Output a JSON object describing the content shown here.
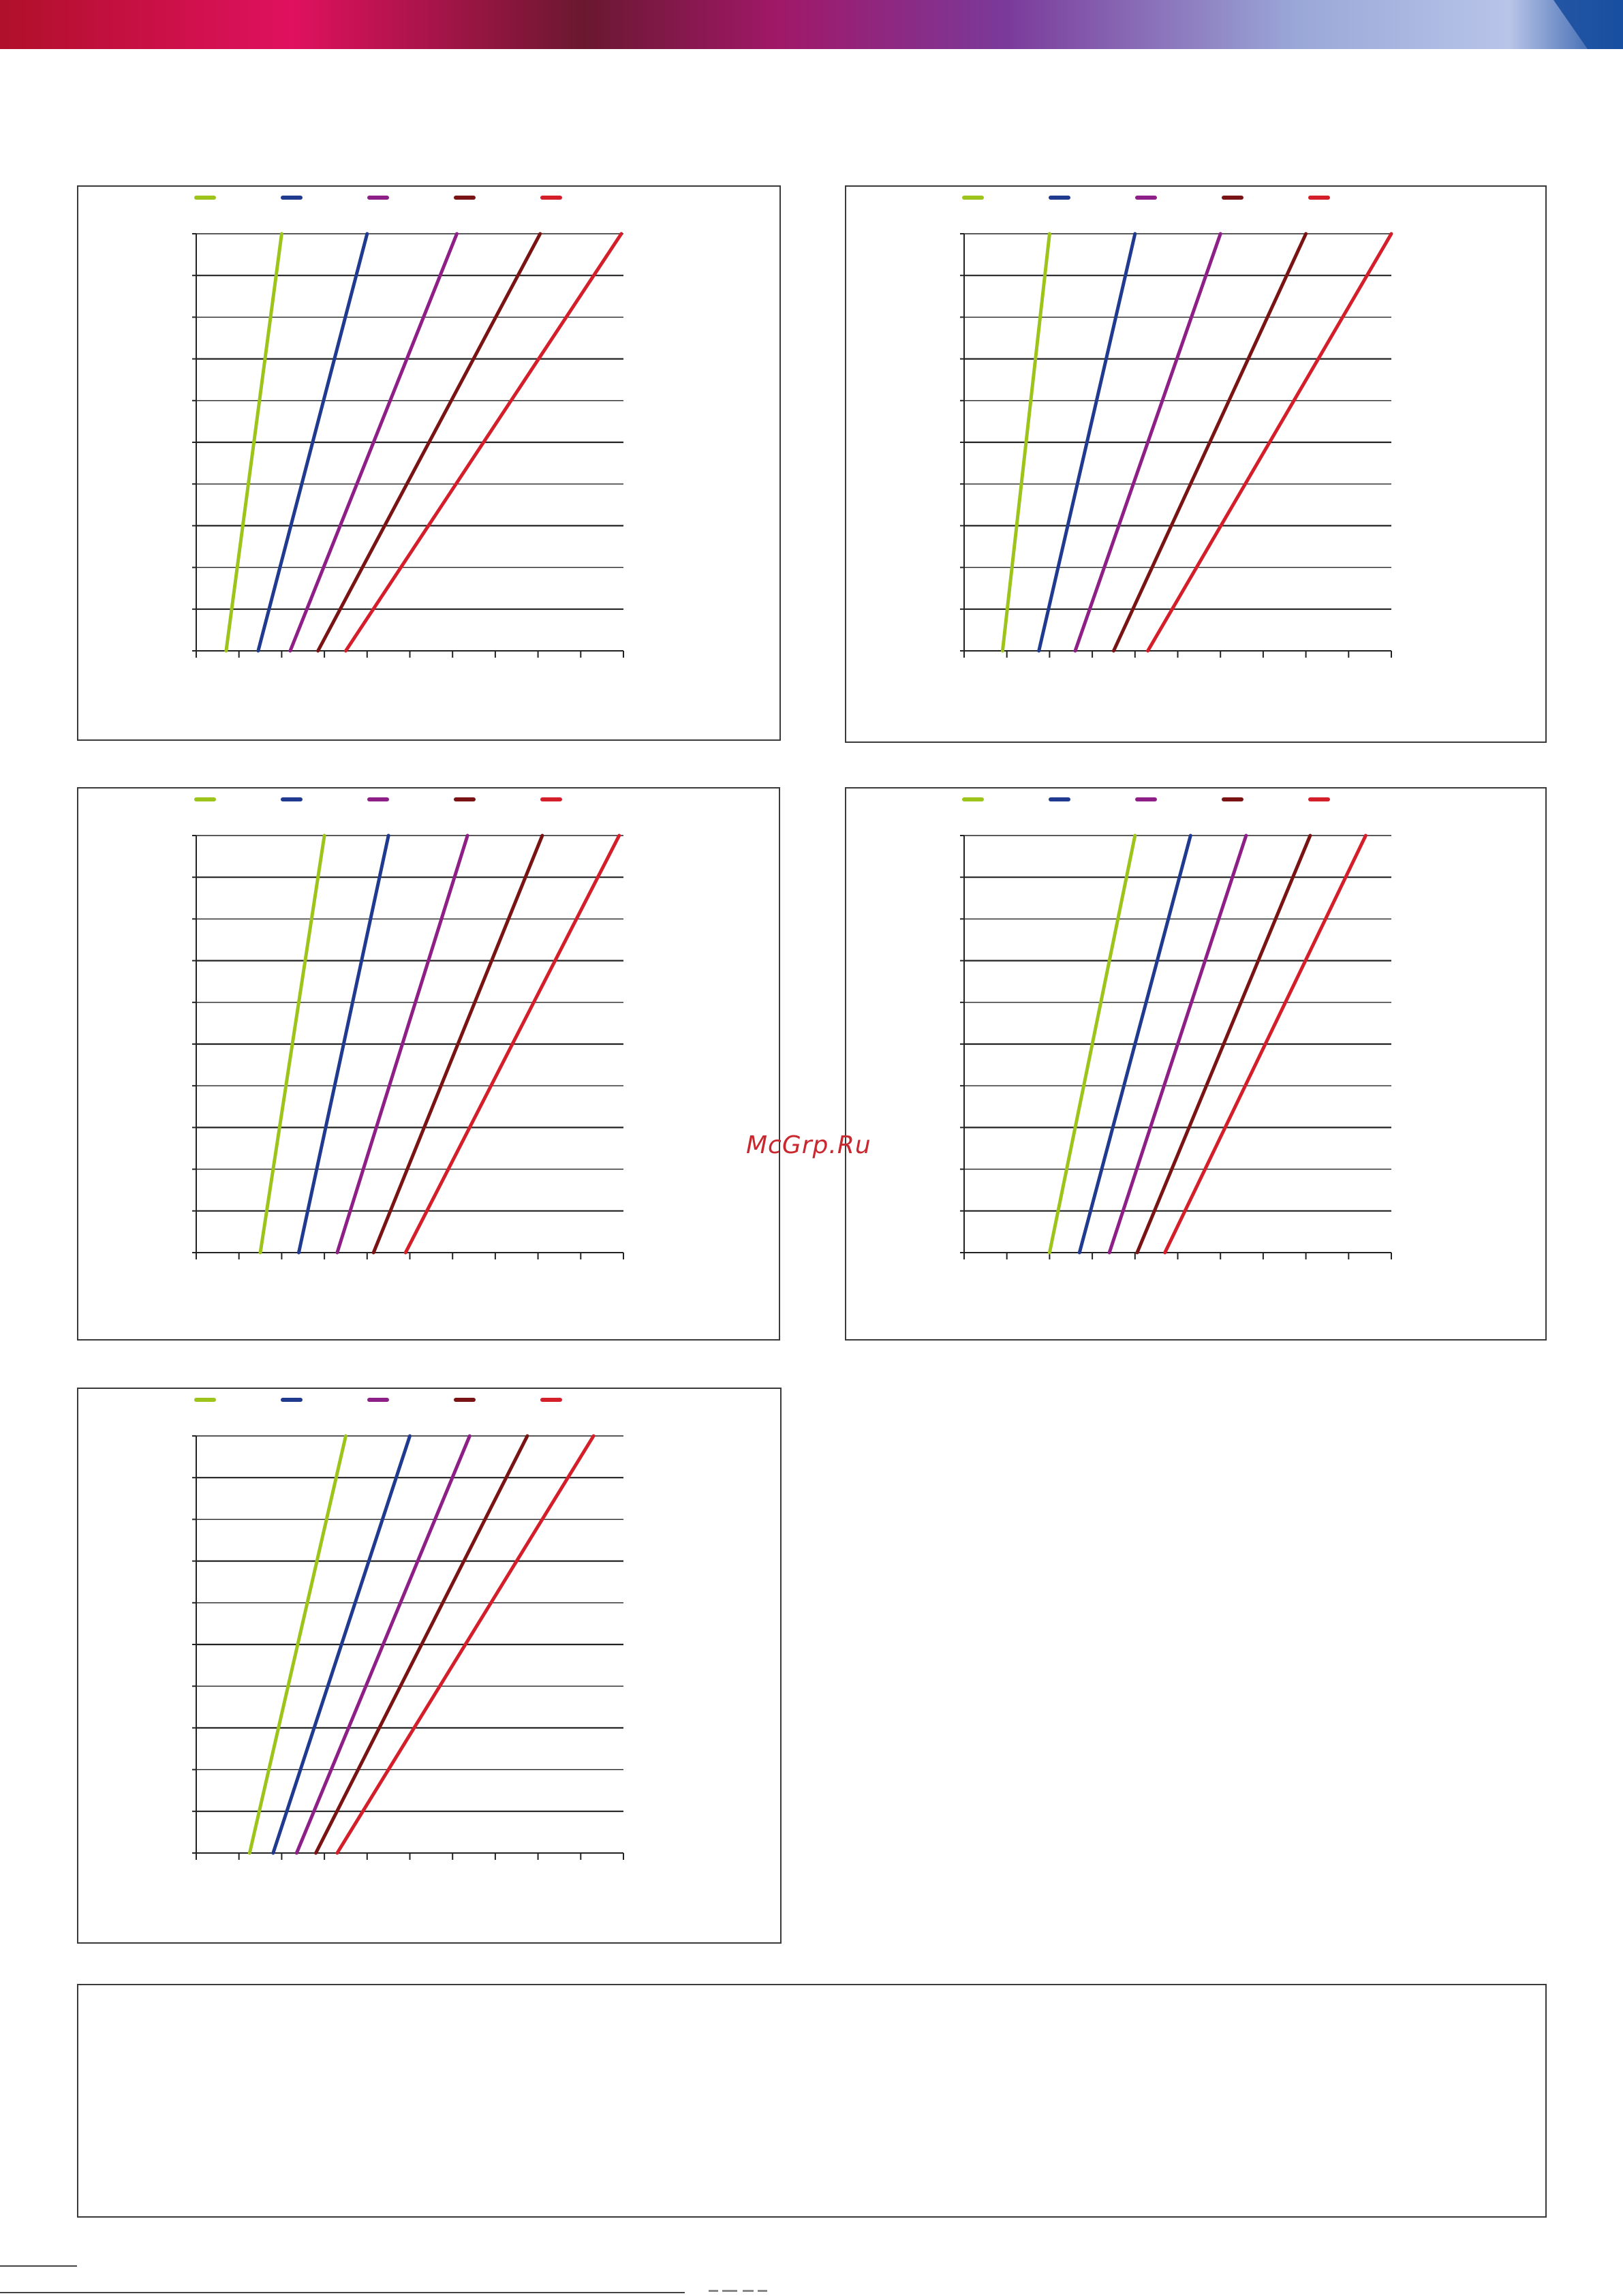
{
  "watermark": "McGrp.Ru",
  "colors": {
    "series": [
      "#9dc41a",
      "#1f3a8f",
      "#8e1f86",
      "#7a1414",
      "#d41e2a"
    ],
    "frame": "#3a3a3a",
    "grid": "#222222",
    "banner": [
      "#c8102e",
      "#e0115f",
      "#8a1a4e",
      "#5a3a8a",
      "#9aa8d8",
      "#1a4fa0"
    ]
  },
  "chart_data": [
    {
      "type": "line",
      "series": [
        {
          "x": [
            0.7,
            2.0
          ]
        },
        {
          "x": [
            1.45,
            4.0
          ]
        },
        {
          "x": [
            2.2,
            6.1
          ]
        },
        {
          "x": [
            2.85,
            8.05
          ]
        },
        {
          "x": [
            3.5,
            9.95
          ]
        }
      ],
      "x_norm": [
        0,
        1
      ],
      "xlim": [
        0,
        10
      ],
      "ylim": [
        0,
        10
      ],
      "grid": true,
      "legend_position": "top"
    },
    {
      "type": "line",
      "series": [
        {
          "x": [
            0.9,
            2.0
          ]
        },
        {
          "x": [
            1.75,
            4.0
          ]
        },
        {
          "x": [
            2.6,
            6.0
          ]
        },
        {
          "x": [
            3.5,
            8.0
          ]
        },
        {
          "x": [
            4.3,
            10.0
          ]
        }
      ],
      "x_norm": [
        0,
        1
      ],
      "xlim": [
        0,
        10
      ],
      "ylim": [
        0,
        10
      ],
      "grid": true,
      "legend_position": "top"
    },
    {
      "type": "line",
      "series": [
        {
          "x": [
            1.5,
            3.0
          ]
        },
        {
          "x": [
            2.4,
            4.5
          ]
        },
        {
          "x": [
            3.3,
            6.35
          ]
        },
        {
          "x": [
            4.15,
            8.1
          ]
        },
        {
          "x": [
            4.9,
            9.9
          ]
        }
      ],
      "x_norm": [
        0,
        1
      ],
      "xlim": [
        0,
        10
      ],
      "ylim": [
        0,
        10
      ],
      "grid": true,
      "legend_position": "top"
    },
    {
      "type": "line",
      "series": [
        {
          "x": [
            2.0,
            4.0
          ]
        },
        {
          "x": [
            2.7,
            5.3
          ]
        },
        {
          "x": [
            3.4,
            6.6
          ]
        },
        {
          "x": [
            4.05,
            8.1
          ]
        },
        {
          "x": [
            4.7,
            9.4
          ]
        }
      ],
      "x_norm": [
        0,
        1
      ],
      "xlim": [
        0,
        10
      ],
      "ylim": [
        0,
        10
      ],
      "grid": true,
      "legend_position": "top"
    },
    {
      "type": "line",
      "series": [
        {
          "x": [
            1.25,
            3.5
          ]
        },
        {
          "x": [
            1.8,
            5.0
          ]
        },
        {
          "x": [
            2.35,
            6.4
          ]
        },
        {
          "x": [
            2.8,
            7.75
          ]
        },
        {
          "x": [
            3.3,
            9.3
          ]
        }
      ],
      "x_norm": [
        0,
        1
      ],
      "xlim": [
        0,
        10
      ],
      "ylim": [
        0,
        10
      ],
      "grid": true,
      "legend_position": "top"
    }
  ]
}
